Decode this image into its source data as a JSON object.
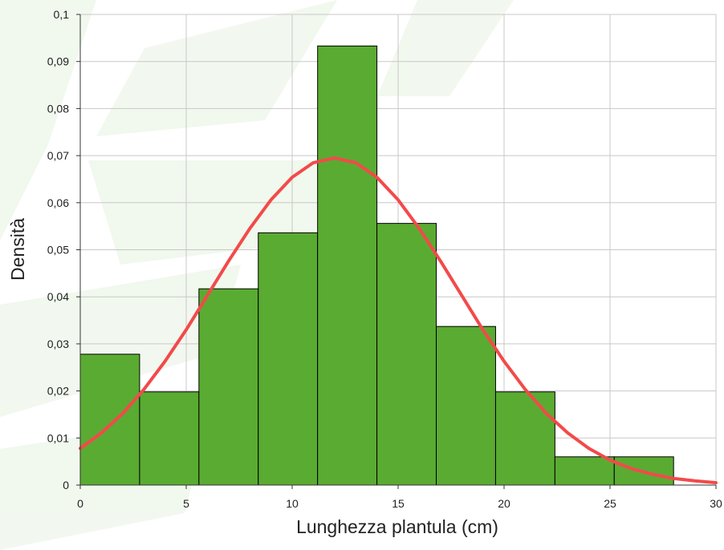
{
  "chart_data": {
    "type": "histogram",
    "xlabel": "Lunghezza plantula (cm)",
    "ylabel": "Densità",
    "bins": [
      0,
      2.8,
      5.6,
      8.4,
      11.2,
      14,
      16.8,
      19.6,
      22.4,
      25.2,
      28
    ],
    "values": [
      0.0278,
      0.0198,
      0.0417,
      0.0536,
      0.0933,
      0.0556,
      0.0337,
      0.0198,
      0.006,
      0.006
    ],
    "color": "#5aab32",
    "edgecolor": "#000000",
    "curve": {
      "type": "line",
      "color": "#f24a4a",
      "x": [
        0,
        1,
        2,
        3,
        4,
        5,
        6,
        7,
        8,
        9,
        10,
        11,
        12,
        13,
        14,
        15,
        16,
        17,
        18,
        19,
        20,
        21,
        22,
        23,
        24,
        25,
        26,
        27,
        28,
        29,
        30
      ],
      "values": [
        0.0078,
        0.0111,
        0.0152,
        0.0203,
        0.0263,
        0.033,
        0.0403,
        0.0476,
        0.0545,
        0.0606,
        0.0654,
        0.0685,
        0.0695,
        0.0685,
        0.0654,
        0.0606,
        0.0545,
        0.0476,
        0.0403,
        0.033,
        0.0263,
        0.0203,
        0.0152,
        0.0111,
        0.0078,
        0.0053,
        0.0035,
        0.0023,
        0.0014,
        0.0009,
        0.0005
      ]
    },
    "xlim": [
      0,
      30
    ],
    "ylim": [
      0,
      0.1
    ],
    "xticks": [
      0,
      5,
      10,
      15,
      20,
      25,
      30
    ],
    "yticks": [
      0,
      {
        "value": 0.01,
        "label": "0,01"
      },
      {
        "value": 0.02,
        "label": "0,02"
      },
      {
        "value": 0.03,
        "label": "0,03"
      },
      {
        "value": 0.04,
        "label": "0,04"
      },
      {
        "value": 0.05,
        "label": "0,05"
      },
      {
        "value": 0.06,
        "label": "0,06"
      },
      {
        "value": 0.07,
        "label": "0,07"
      },
      {
        "value": 0.08,
        "label": "0,08"
      },
      {
        "value": 0.09,
        "label": "0,09"
      },
      {
        "value": 0.1,
        "label": "0,1"
      }
    ],
    "grid": true
  }
}
